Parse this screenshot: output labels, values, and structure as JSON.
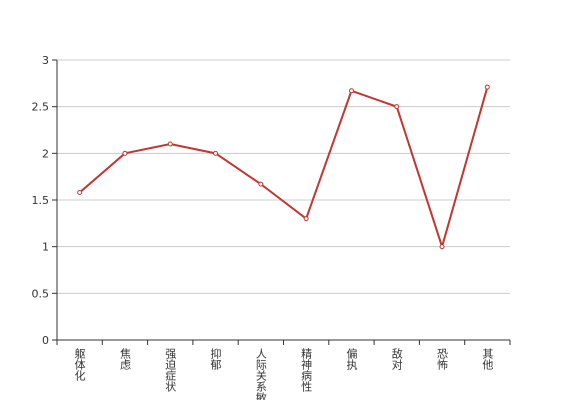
{
  "chart_data": {
    "type": "line",
    "categories": [
      "躯体化",
      "焦虑",
      "强迫症状",
      "抑郁",
      "人际关系敏感",
      "精神病性",
      "偏执",
      "敌对",
      "恐怖",
      "其他"
    ],
    "values": [
      1.58,
      2.0,
      2.1,
      2.0,
      1.67,
      1.3,
      2.67,
      2.5,
      1.0,
      2.71
    ],
    "color": "#c23531",
    "ylim": [
      0,
      3
    ],
    "yticks": [
      0,
      0.5,
      1,
      1.5,
      2,
      2.5,
      3
    ],
    "grid": true
  }
}
